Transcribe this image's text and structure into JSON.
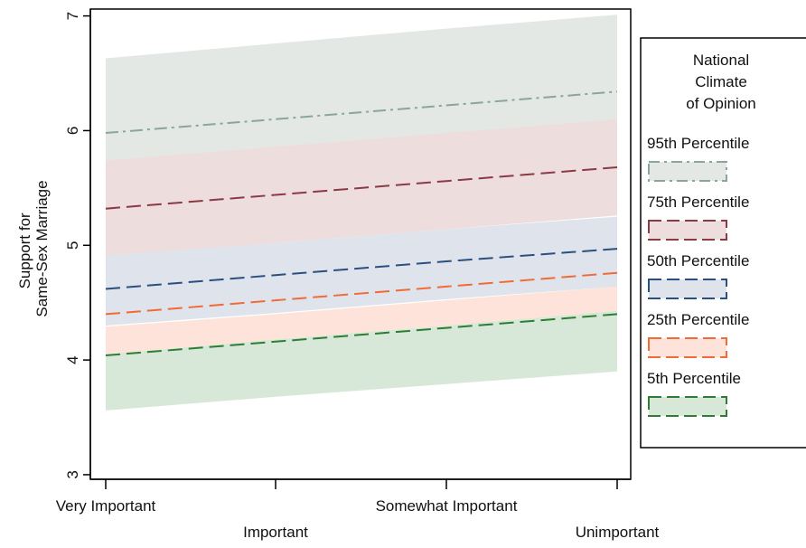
{
  "chart_data": {
    "type": "line",
    "ylabel_lines": [
      "Support for",
      "Same-Sex Marriage"
    ],
    "categories": [
      "Very Important",
      "Important",
      "Somewhat Important",
      "Unimportant"
    ],
    "ylim": [
      2.96,
      7.06
    ],
    "yticks": [
      3,
      4,
      5,
      6,
      7
    ],
    "grid": false,
    "legend": {
      "position": "right",
      "title_lines": [
        "National",
        "Climate",
        "of Opinion"
      ]
    },
    "series": [
      {
        "name": "95th Percentile",
        "line_color": "#8aa698",
        "band_color": "#e3e8e4",
        "values": [
          5.98,
          6.1,
          6.22,
          6.34
        ],
        "lower": [
          5.33,
          5.55,
          5.77,
          5.99
        ],
        "upper": [
          6.63,
          6.76,
          6.89,
          7.01
        ]
      },
      {
        "name": "75th Percentile",
        "line_color": "#8b3a45",
        "band_color": "#eedddd",
        "values": [
          5.32,
          5.44,
          5.56,
          5.68
        ],
        "lower": [
          4.9,
          5.02,
          5.14,
          5.26
        ],
        "upper": [
          5.74,
          5.86,
          5.98,
          6.1
        ]
      },
      {
        "name": "50th Percentile",
        "line_color": "#2b4f7e",
        "band_color": "#dfe3ec",
        "values": [
          4.62,
          4.74,
          4.86,
          4.97
        ],
        "lower": [
          4.3,
          4.41,
          4.53,
          4.64
        ],
        "upper": [
          4.91,
          5.02,
          5.14,
          5.25
        ]
      },
      {
        "name": "25th Percentile",
        "line_color": "#f06b35",
        "band_color": "#fde3d9",
        "values": [
          4.4,
          4.52,
          4.64,
          4.76
        ],
        "lower": [
          4.05,
          4.18,
          4.3,
          4.43
        ],
        "upper": [
          4.29,
          4.4,
          4.52,
          4.64
        ]
      },
      {
        "name": "5th  Percentile",
        "line_color": "#2f7d34",
        "band_color": "#d8e8d8",
        "values": [
          4.04,
          4.16,
          4.28,
          4.4
        ],
        "lower": [
          3.56,
          3.68,
          3.79,
          3.9
        ],
        "upper": [
          4.05,
          4.18,
          4.3,
          4.43
        ]
      }
    ]
  }
}
